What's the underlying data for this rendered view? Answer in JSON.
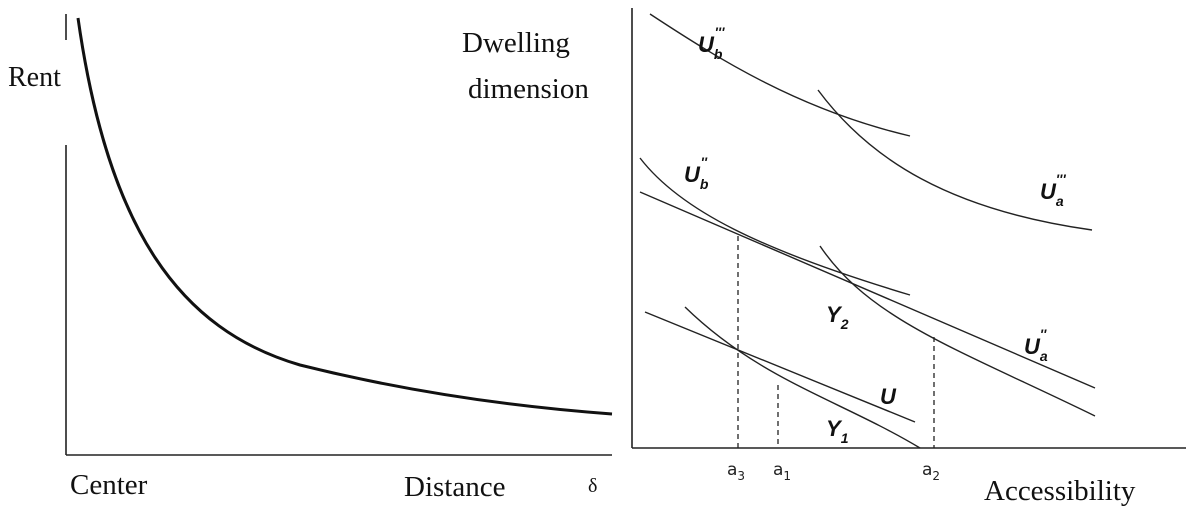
{
  "left_panel": {
    "y_label": "Rent",
    "x_origin_label": "Center",
    "x_label": "Distance",
    "x_symbol": "δ"
  },
  "right_panel": {
    "y_label_line1": "Dwelling",
    "y_label_line2": "dimension",
    "x_label": "Accessibility",
    "ticks": [
      {
        "base": "a",
        "sub": "3"
      },
      {
        "base": "a",
        "sub": "1"
      },
      {
        "base": "a",
        "sub": "2"
      }
    ],
    "curve_labels": {
      "ub3": {
        "base": "U",
        "sub": "b",
        "sup": "'''"
      },
      "ua3": {
        "base": "U",
        "sub": "a",
        "sup": "'''"
      },
      "ub2": {
        "base": "U",
        "sub": "b",
        "sup": "''"
      },
      "ua2": {
        "base": "U",
        "sub": "a",
        "sup": "''"
      },
      "y2": {
        "base": "Y",
        "sub": "2"
      },
      "y1": {
        "base": "Y",
        "sub": "1"
      },
      "u": {
        "base": "U"
      }
    }
  }
}
